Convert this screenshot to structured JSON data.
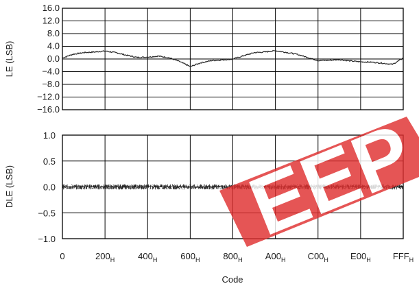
{
  "colors": {
    "line": "#222222",
    "grid": "#000000",
    "watermark": "#e03030"
  },
  "watermark": {
    "text": "EEP"
  },
  "chart_data": [
    {
      "type": "line",
      "ylabel": "LE (LSB)",
      "ylim": [
        -16,
        16
      ],
      "yticks": [
        "16.0",
        "12.0",
        "8.0",
        "4.0",
        "0.0",
        "−4.0",
        "−8.0",
        "−12.0",
        "−16.0"
      ],
      "xlim": [
        0,
        4095
      ],
      "grid": true,
      "series": [
        {
          "x": [
            0,
            128,
            256,
            384,
            512,
            640,
            768,
            896,
            1024,
            1152,
            1280,
            1408,
            1536,
            1664,
            1792,
            1920,
            2048,
            2176,
            2304,
            2432,
            2560,
            2688,
            2816,
            2944,
            3072,
            3200,
            3328,
            3456,
            3584,
            3712,
            3840,
            3968,
            4095
          ],
          "values": [
            0.3,
            1.5,
            2.0,
            2.2,
            2.5,
            2.0,
            1.2,
            0.5,
            0.6,
            0.9,
            0.4,
            -0.8,
            -2.4,
            -1.2,
            -0.5,
            -0.3,
            0.0,
            1.0,
            2.0,
            2.2,
            2.6,
            2.1,
            1.5,
            0.5,
            -0.5,
            -0.4,
            -0.2,
            -0.6,
            -0.9,
            -1.0,
            -1.3,
            -1.7,
            0.3
          ]
        }
      ]
    },
    {
      "type": "line",
      "xlabel": "Code",
      "ylabel": "DLE (LSB)",
      "ylim": [
        -1.0,
        1.0
      ],
      "yticks": [
        "1.0",
        "0.5",
        "0.0",
        "−0.5",
        "−1.0"
      ],
      "xlim": [
        0,
        4095
      ],
      "xticks": [
        {
          "main": "0",
          "sub": ""
        },
        {
          "main": "200",
          "sub": "H"
        },
        {
          "main": "400",
          "sub": "H"
        },
        {
          "main": "600",
          "sub": "H"
        },
        {
          "main": "800",
          "sub": "H"
        },
        {
          "main": "A00",
          "sub": "H"
        },
        {
          "main": "C00",
          "sub": "H"
        },
        {
          "main": "E00",
          "sub": "H"
        },
        {
          "main": "FFF",
          "sub": "H"
        }
      ],
      "grid": true,
      "series": [
        {
          "band_center": 0.0,
          "band_halfwidth": 0.05
        }
      ]
    }
  ]
}
